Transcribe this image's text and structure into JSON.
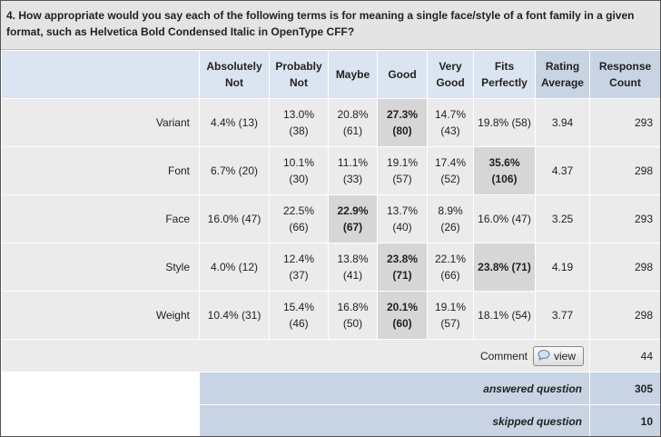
{
  "title": "4. How appropriate would you say each of the following terms is for meaning a single face/style of a font family in a given format, such as Helvetica Bold Condensed Italic in OpenType CFF?",
  "table": {
    "header": [
      "Absolutely Not",
      "Probably Not",
      "Maybe",
      "Good",
      "Very Good",
      "Fits Perfectly",
      "Rating Average",
      "Response Count"
    ],
    "rows": [
      {
        "label": "Variant",
        "cells": [
          "4.4% (13)",
          "13.0% (38)",
          "20.8% (61)",
          "27.3% (80)",
          "14.7% (43)",
          "19.8% (58)"
        ],
        "rating": 3.94,
        "count": 293,
        "highlight": [
          3
        ]
      },
      {
        "label": "Font",
        "cells": [
          "6.7% (20)",
          "10.1% (30)",
          "11.1% (33)",
          "19.1% (57)",
          "17.4% (52)",
          "35.6% (106)"
        ],
        "rating": 4.37,
        "count": 298,
        "highlight": [
          5
        ]
      },
      {
        "label": "Face",
        "cells": [
          "16.0% (47)",
          "22.5% (66)",
          "22.9% (67)",
          "13.7% (40)",
          "8.9% (26)",
          "16.0% (47)"
        ],
        "rating": 3.25,
        "count": 293,
        "highlight": [
          2
        ]
      },
      {
        "label": "Style",
        "cells": [
          "4.0% (12)",
          "12.4% (37)",
          "13.8% (41)",
          "23.8% (71)",
          "22.1% (66)",
          "23.8% (71)"
        ],
        "rating": 4.19,
        "count": 298,
        "highlight": [
          3,
          5
        ]
      },
      {
        "label": "Weight",
        "cells": [
          "10.4% (31)",
          "15.4% (46)",
          "16.8% (50)",
          "20.1% (60)",
          "19.1% (57)",
          "18.1% (54)"
        ],
        "rating": 3.77,
        "count": 298,
        "highlight": [
          3
        ]
      }
    ],
    "comment": {
      "label": "Comment",
      "button": "view",
      "count": 44
    },
    "answered": {
      "label": "answered question",
      "value": 305
    },
    "skipped": {
      "label": "skipped question",
      "value": 10
    }
  }
}
